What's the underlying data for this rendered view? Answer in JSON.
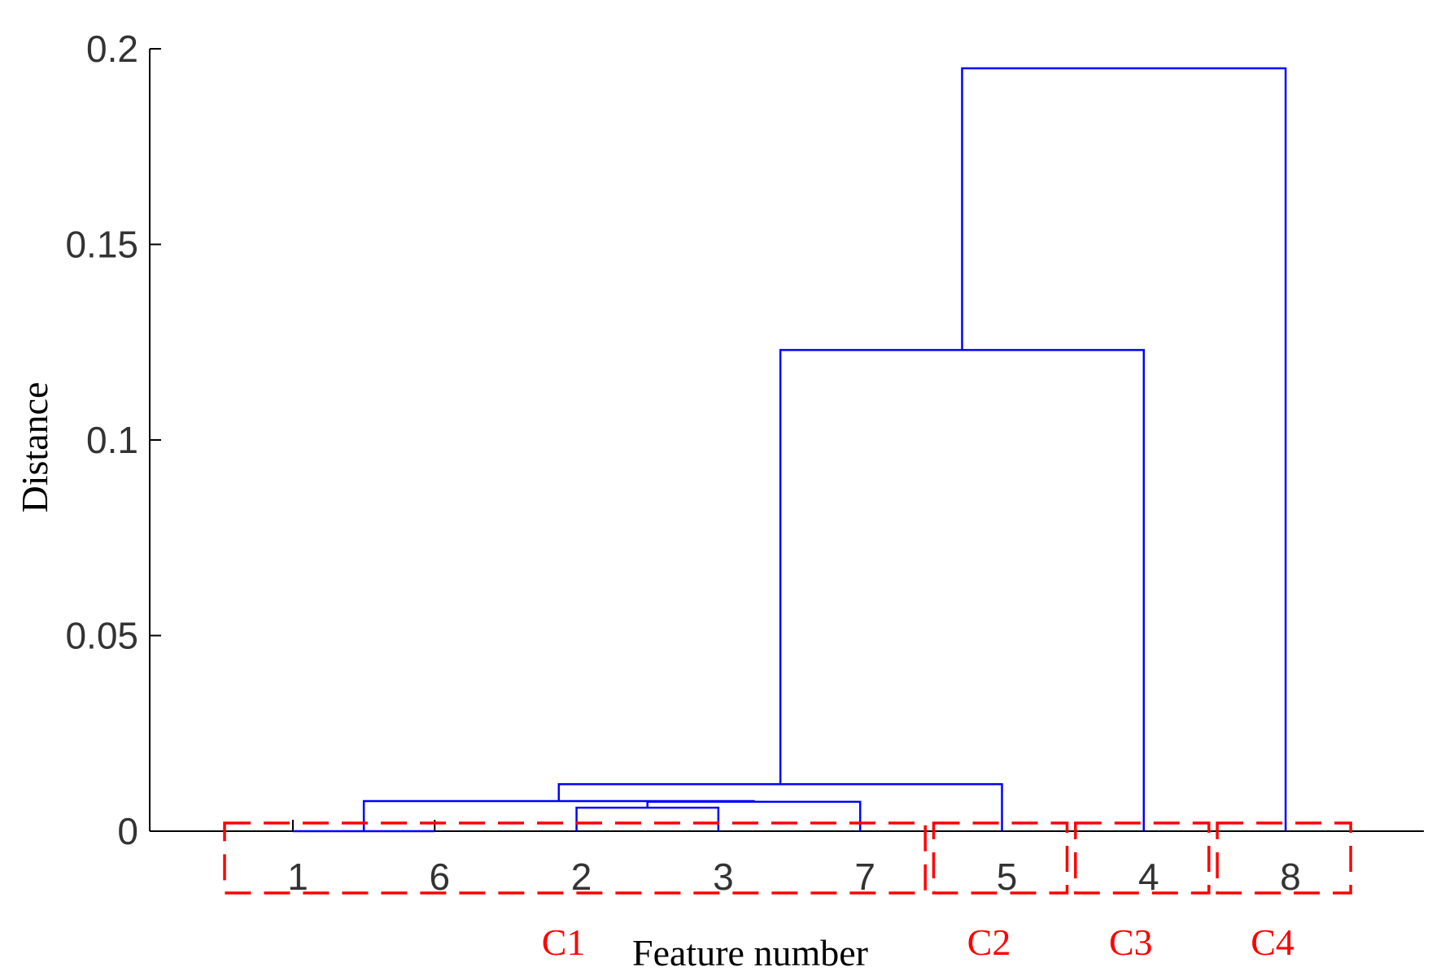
{
  "chart_data": {
    "type": "dendrogram",
    "xlabel": "Feature number",
    "ylabel": "Distance",
    "ylim": [
      0,
      0.2
    ],
    "yticks": [
      "0",
      "0.05",
      "0.1",
      "0.15",
      "0.2"
    ],
    "leaf_order": [
      "1",
      "6",
      "2",
      "3",
      "7",
      "5",
      "4",
      "8"
    ],
    "links": [
      {
        "left": "1",
        "right": "6",
        "distance": 0.0
      },
      {
        "left": "2",
        "right": "3",
        "distance": 0.006
      },
      {
        "left": "2-3",
        "right": "7",
        "distance": 0.0075
      },
      {
        "left": "1-6",
        "right": "2-3-7",
        "distance": 0.0077
      },
      {
        "left": "1-6-2-3-7",
        "right": "5",
        "distance": 0.012
      },
      {
        "left": "1-6-2-3-7-5",
        "right": "4",
        "distance": 0.123
      },
      {
        "left": "1-6-2-3-7-5-4",
        "right": "8",
        "distance": 0.195
      }
    ],
    "clusters": [
      {
        "name": "C1",
        "leaves": [
          "1",
          "6",
          "2",
          "3",
          "7"
        ]
      },
      {
        "name": "C2",
        "leaves": [
          "5"
        ]
      },
      {
        "name": "C3",
        "leaves": [
          "4"
        ]
      },
      {
        "name": "C4",
        "leaves": [
          "8"
        ]
      }
    ],
    "link_color": "#0000ff",
    "cluster_box_color": "#ff0000",
    "grid": false
  }
}
